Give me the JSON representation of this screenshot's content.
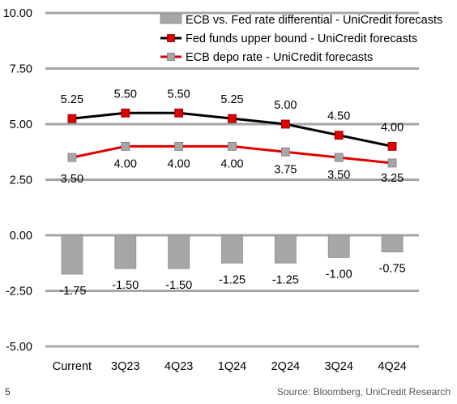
{
  "page_number": "5",
  "source": "Source: Bloomberg, UniCredit Research",
  "chart_data": {
    "type": "bar",
    "categories": [
      "Current",
      "3Q23",
      "4Q23",
      "1Q24",
      "2Q24",
      "3Q24",
      "4Q24"
    ],
    "ylim": [
      -5.0,
      10.0
    ],
    "yticks": [
      "10.00",
      "7.50",
      "5.00",
      "2.50",
      "0.00",
      "-2.50",
      "-5.00"
    ],
    "ytick_values": [
      10,
      7.5,
      5,
      2.5,
      0,
      -2.5,
      -5
    ],
    "grid": "horizontal",
    "legend": "top-right",
    "series": [
      {
        "name": "ECB vs. Fed rate differential - UniCredit forecasts",
        "kind": "bar",
        "color": "#a6a6a6",
        "values": [
          -1.75,
          -1.5,
          -1.5,
          -1.25,
          -1.25,
          -1.0,
          -0.75
        ],
        "labels": [
          "-1.75",
          "-1.50",
          "-1.50",
          "-1.25",
          "-1.25",
          "-1.00",
          "-0.75"
        ]
      },
      {
        "name": "Fed funds upper bound - UniCredit forecasts",
        "kind": "line",
        "line_color": "#000000",
        "marker_color": "#e00000",
        "values": [
          5.25,
          5.5,
          5.5,
          5.25,
          5.0,
          4.5,
          4.0
        ],
        "labels": [
          "5.25",
          "5.50",
          "5.50",
          "5.25",
          "5.00",
          "4.50",
          "4.00"
        ]
      },
      {
        "name": "ECB depo rate - UniCredit forecasts",
        "kind": "line",
        "line_color": "#e00000",
        "marker_color": "#a6a6a6",
        "values": [
          3.5,
          4.0,
          4.0,
          4.0,
          3.75,
          3.5,
          3.25
        ],
        "labels": [
          "3.50",
          "4.00",
          "4.00",
          "4.00",
          "3.75",
          "3.50",
          "3.25"
        ]
      }
    ]
  }
}
